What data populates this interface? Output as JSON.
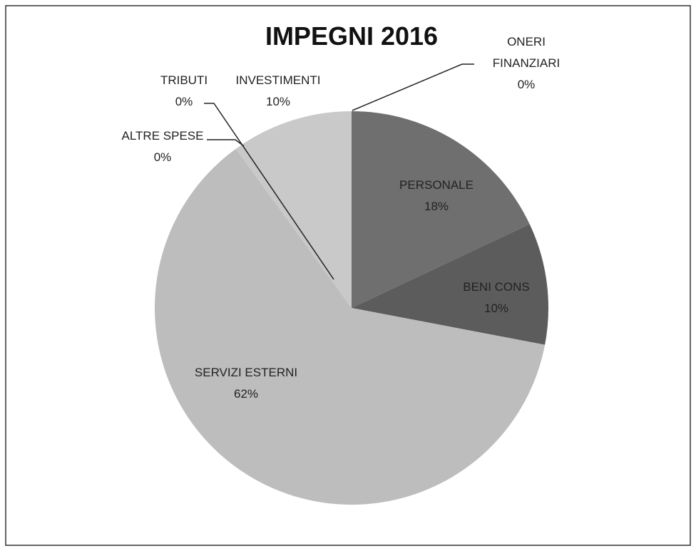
{
  "chart_data": {
    "type": "pie",
    "title": "IMPEGNI 2016",
    "categories": [
      "ONERI FINANZIARI",
      "PERSONALE",
      "BENI CONS",
      "SERVIZI ESTERNI",
      "ALTRE SPESE",
      "TRIBUTI",
      "INVESTIMENTI"
    ],
    "values": [
      0,
      18,
      10,
      62,
      0,
      0,
      10
    ],
    "value_labels": [
      "0%",
      "18%",
      "10%",
      "62%",
      "0%",
      "0%",
      "10%"
    ],
    "colors": [
      "#8a8a8a",
      "#6f6f6f",
      "#5c5c5c",
      "#bdbdbd",
      "#555555",
      "#444444",
      "#c9c9c9"
    ]
  }
}
